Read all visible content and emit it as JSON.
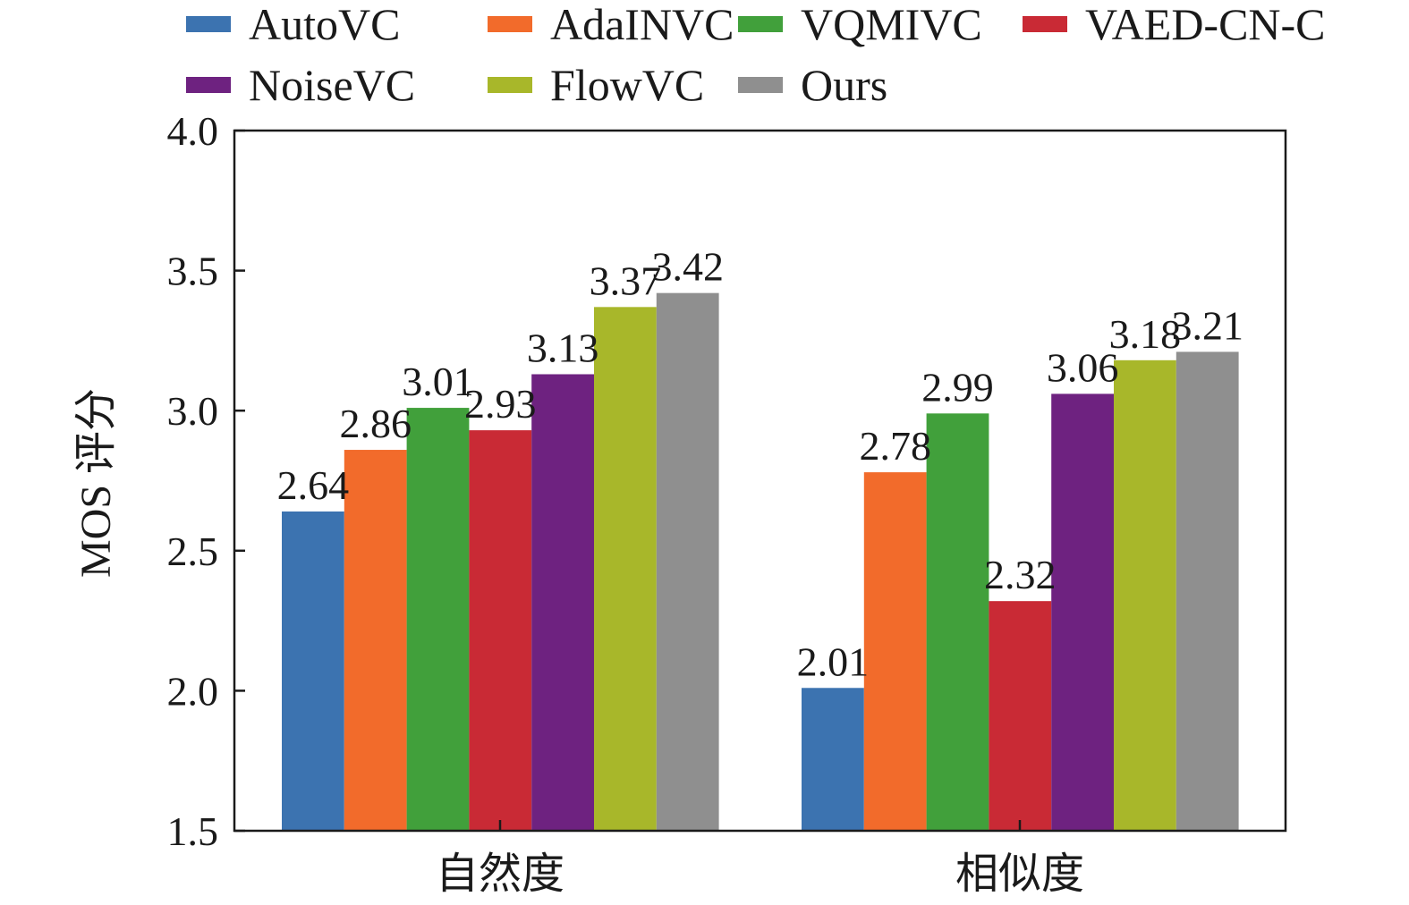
{
  "chart_data": {
    "type": "bar",
    "title": "",
    "xlabel": "",
    "ylabel": "MOS 评分",
    "ylim": [
      1.5,
      4.0
    ],
    "yticks": [
      "1.5",
      "2.0",
      "2.5",
      "3.0",
      "3.5",
      "4.0"
    ],
    "categories": [
      "自然度",
      "相似度"
    ],
    "grid": false,
    "legend_position": "top",
    "series": [
      {
        "name": "AutoVC",
        "color": "#3c73b0",
        "values": [
          2.64,
          2.01
        ],
        "labels": [
          "2.64",
          "2.01"
        ]
      },
      {
        "name": "AdaINVC",
        "color": "#f26b2b",
        "values": [
          2.86,
          2.78
        ],
        "labels": [
          "2.86",
          "2.78"
        ]
      },
      {
        "name": "VQMIVC",
        "color": "#41a03b",
        "values": [
          3.01,
          2.99
        ],
        "labels": [
          "3.01",
          "2.99"
        ]
      },
      {
        "name": "VAED-CN-C",
        "color": "#c92a35",
        "values": [
          2.93,
          2.32
        ],
        "labels": [
          "2.93",
          "2.32"
        ]
      },
      {
        "name": "NoiseVC",
        "color": "#6e2280",
        "values": [
          3.13,
          3.06
        ],
        "labels": [
          "3.13",
          "3.06"
        ]
      },
      {
        "name": "FlowVC",
        "color": "#a8b72a",
        "values": [
          3.37,
          3.18
        ],
        "labels": [
          "3.37",
          "3.18"
        ]
      },
      {
        "name": "Ours",
        "color": "#8f8f8f",
        "values": [
          3.42,
          3.21
        ],
        "labels": [
          "3.42",
          "3.21"
        ]
      }
    ]
  }
}
